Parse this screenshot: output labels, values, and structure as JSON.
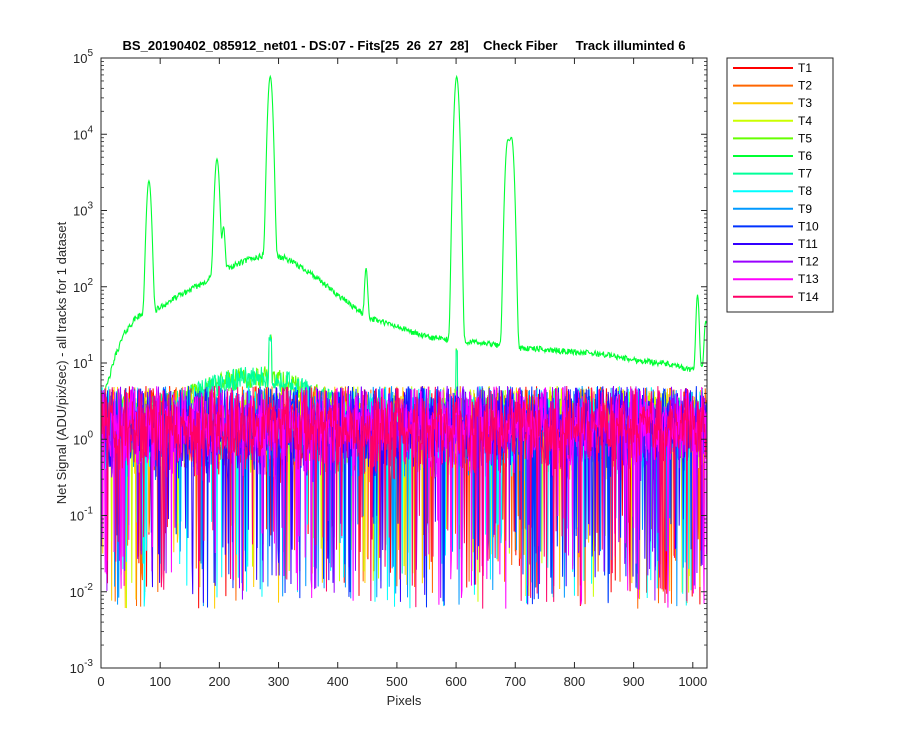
{
  "chart_data": {
    "type": "line",
    "title": "BS_20190402_085912_net01 - DS:07 - Fits[25  26  27  28]    Check Fiber     Track illuminted 6",
    "xlabel": "Pixels",
    "ylabel": "Net Signal (ADU/pix/sec) - all tracks for 1 dataset",
    "xlim": [
      0,
      1024
    ],
    "ylim": [
      0.001,
      100000
    ],
    "yscale": "log",
    "x_ticks": [
      0,
      100,
      200,
      300,
      400,
      500,
      600,
      700,
      800,
      900,
      1000
    ],
    "x_tick_labels": [
      "0",
      "100",
      "200",
      "300",
      "400",
      "500",
      "600",
      "700",
      "800",
      "900",
      "1000"
    ],
    "y_ticks": [
      0.001,
      0.01,
      0.1,
      1,
      10,
      100,
      1000,
      10000,
      100000
    ],
    "y_tick_labels": [
      {
        "base": "10",
        "exp": "-3"
      },
      {
        "base": "10",
        "exp": "-2"
      },
      {
        "base": "10",
        "exp": "-1"
      },
      {
        "base": "10",
        "exp": "0"
      },
      {
        "base": "10",
        "exp": "1"
      },
      {
        "base": "10",
        "exp": "2"
      },
      {
        "base": "10",
        "exp": "3"
      },
      {
        "base": "10",
        "exp": "4"
      },
      {
        "base": "10",
        "exp": "5"
      }
    ],
    "grid": false,
    "legend_position": "outside-top-right",
    "illuminated_track": "T6",
    "series": [
      {
        "name": "T1",
        "color": "#ff0000"
      },
      {
        "name": "T2",
        "color": "#ff6600"
      },
      {
        "name": "T3",
        "color": "#ffcc00"
      },
      {
        "name": "T4",
        "color": "#ccff00"
      },
      {
        "name": "T5",
        "color": "#66ff00"
      },
      {
        "name": "T6",
        "color": "#00ff33"
      },
      {
        "name": "T7",
        "color": "#00ff99"
      },
      {
        "name": "T8",
        "color": "#00ffff"
      },
      {
        "name": "T9",
        "color": "#0099ff"
      },
      {
        "name": "T10",
        "color": "#0033ff"
      },
      {
        "name": "T11",
        "color": "#3300ff"
      },
      {
        "name": "T12",
        "color": "#9900ff"
      },
      {
        "name": "T13",
        "color": "#ff00ff"
      },
      {
        "name": "T14",
        "color": "#ff0066"
      }
    ],
    "illuminated_profile": {
      "baseline": [
        [
          0,
          3
        ],
        [
          10,
          5
        ],
        [
          25,
          13
        ],
        [
          40,
          25
        ],
        [
          60,
          40
        ],
        [
          90,
          48
        ],
        [
          130,
          75
        ],
        [
          170,
          110
        ],
        [
          210,
          170
        ],
        [
          250,
          230
        ],
        [
          280,
          260
        ],
        [
          310,
          240
        ],
        [
          350,
          160
        ],
        [
          390,
          90
        ],
        [
          420,
          60
        ],
        [
          450,
          40
        ],
        [
          500,
          30
        ],
        [
          550,
          22
        ],
        [
          590,
          20
        ],
        [
          620,
          19
        ],
        [
          650,
          18
        ],
        [
          700,
          16
        ],
        [
          750,
          15
        ],
        [
          800,
          14
        ],
        [
          850,
          13
        ],
        [
          900,
          11
        ],
        [
          950,
          10
        ],
        [
          1000,
          8
        ],
        [
          1015,
          9
        ],
        [
          1024,
          12
        ]
      ],
      "peaks": [
        {
          "x": 81,
          "y": 2400,
          "width": 3
        },
        {
          "x": 196,
          "y": 4600,
          "width": 3
        },
        {
          "x": 207,
          "y": 450,
          "width": 2
        },
        {
          "x": 286,
          "y": 57000,
          "width": 3
        },
        {
          "x": 448,
          "y": 135,
          "width": 2
        },
        {
          "x": 601,
          "y": 57000,
          "width": 3
        },
        {
          "x": 687,
          "y": 7800,
          "width": 3
        },
        {
          "x": 694,
          "y": 8500,
          "width": 3
        },
        {
          "x": 1008,
          "y": 70,
          "width": 2
        },
        {
          "x": 1022,
          "y": 25,
          "width": 2
        }
      ]
    },
    "noise_level": {
      "typical": 1.5,
      "min": 0.006,
      "max": 5
    }
  }
}
